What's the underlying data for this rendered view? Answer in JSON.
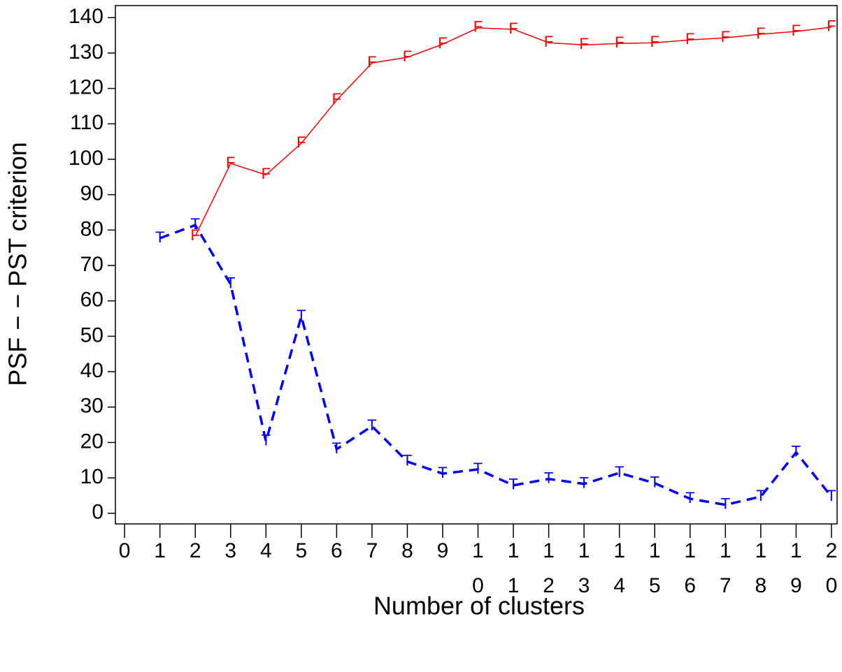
{
  "chart_data": {
    "type": "line",
    "x_label": "Number of clusters",
    "y_label": "PSF − −  PST criterion",
    "x": [
      1,
      2,
      3,
      4,
      5,
      6,
      7,
      8,
      9,
      10,
      11,
      12,
      13,
      14,
      15,
      16,
      17,
      18,
      19,
      20
    ],
    "series": [
      {
        "marker": "F",
        "color": "#ff0000",
        "dash": false,
        "values": [
          null,
          78.3,
          98.8,
          95.6,
          104.5,
          116.7,
          127.2,
          128.8,
          132.5,
          137.1,
          136.7,
          132.9,
          132.3,
          132.7,
          132.9,
          133.7,
          134.3,
          135.3,
          136.1,
          137.3
        ]
      },
      {
        "marker": "T",
        "color": "#0000ff",
        "dash": true,
        "values": [
          77.7,
          81.4,
          64.7,
          20.3,
          55.6,
          18.1,
          24.6,
          14.6,
          11.2,
          12.4,
          7.9,
          9.7,
          8.3,
          11.4,
          8.5,
          4.1,
          2.4,
          4.7,
          17.2,
          4.7
        ]
      }
    ],
    "xlim": [
      -0.26,
      20.16
    ],
    "xticks": [
      0,
      1,
      2,
      3,
      4,
      5,
      6,
      7,
      8,
      9,
      10,
      11,
      12,
      13,
      14,
      15,
      16,
      17,
      18,
      19,
      20
    ],
    "ylim": [
      -3,
      143.4
    ],
    "yticks": [
      0,
      10,
      20,
      30,
      40,
      50,
      60,
      70,
      80,
      90,
      100,
      110,
      120,
      130,
      140
    ]
  }
}
